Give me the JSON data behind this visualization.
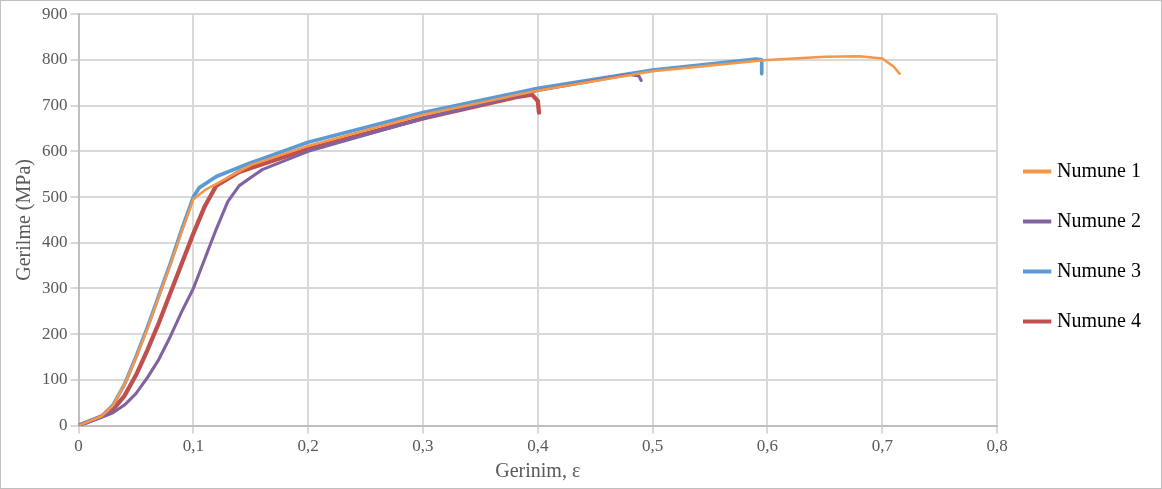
{
  "chart_data": {
    "type": "line",
    "xlabel": "Gerinim, ε",
    "ylabel": "Gerilme (MPa)",
    "xlim": [
      0,
      0.8
    ],
    "xticks": [
      {
        "value": 0,
        "label": "0"
      },
      {
        "value": 0.1,
        "label": "0,1"
      },
      {
        "value": 0.2,
        "label": "0,2"
      },
      {
        "value": 0.3,
        "label": "0,3"
      },
      {
        "value": 0.4,
        "label": "0,4"
      },
      {
        "value": 0.5,
        "label": "0,5"
      },
      {
        "value": 0.6,
        "label": "0,6"
      },
      {
        "value": 0.7,
        "label": "0,7"
      },
      {
        "value": 0.8,
        "label": "0,8"
      }
    ],
    "ylim": [
      0,
      900
    ],
    "yticks": [
      0,
      100,
      200,
      300,
      400,
      500,
      600,
      700,
      800,
      900
    ],
    "grid": true,
    "legend": "right",
    "marker": "none",
    "line_style": "solid",
    "series": [
      {
        "name": "Numune 1",
        "color": "#f79646",
        "x": [
          0,
          0.02,
          0.03,
          0.04,
          0.05,
          0.06,
          0.07,
          0.08,
          0.09,
          0.1,
          0.11,
          0.15,
          0.2,
          0.3,
          0.4,
          0.5,
          0.6,
          0.65,
          0.68,
          0.7,
          0.71,
          0.715
        ],
        "values": [
          0,
          20,
          45,
          90,
          148,
          212,
          282,
          352,
          425,
          495,
          515,
          570,
          612,
          680,
          733,
          775,
          800,
          807,
          808,
          803,
          785,
          770
        ]
      },
      {
        "name": "Numune 2",
        "color": "#8064a2",
        "x": [
          0,
          0.02,
          0.03,
          0.04,
          0.05,
          0.06,
          0.07,
          0.08,
          0.09,
          0.1,
          0.11,
          0.12,
          0.13,
          0.14,
          0.16,
          0.2,
          0.3,
          0.4,
          0.48,
          0.488,
          0.49
        ],
        "values": [
          0,
          18,
          28,
          45,
          70,
          105,
          145,
          195,
          250,
          300,
          365,
          430,
          490,
          525,
          560,
          600,
          672,
          733,
          768,
          765,
          755
        ]
      },
      {
        "name": "Numune 3",
        "color": "#5b9bd5",
        "x": [
          0,
          0.02,
          0.03,
          0.04,
          0.05,
          0.06,
          0.07,
          0.08,
          0.09,
          0.1,
          0.105,
          0.12,
          0.15,
          0.2,
          0.3,
          0.4,
          0.5,
          0.59,
          0.595,
          0.595
        ],
        "values": [
          0,
          20,
          45,
          90,
          150,
          215,
          285,
          355,
          430,
          500,
          520,
          545,
          575,
          620,
          685,
          738,
          778,
          802,
          800,
          770
        ]
      },
      {
        "name": "Numune 4",
        "color": "#c0504d",
        "x": [
          0,
          0.02,
          0.03,
          0.04,
          0.05,
          0.06,
          0.07,
          0.08,
          0.09,
          0.1,
          0.11,
          0.12,
          0.14,
          0.2,
          0.3,
          0.38,
          0.395,
          0.4,
          0.401
        ],
        "values": [
          0,
          20,
          35,
          65,
          110,
          165,
          225,
          290,
          355,
          420,
          480,
          525,
          555,
          605,
          672,
          718,
          724,
          710,
          685
        ]
      }
    ]
  }
}
